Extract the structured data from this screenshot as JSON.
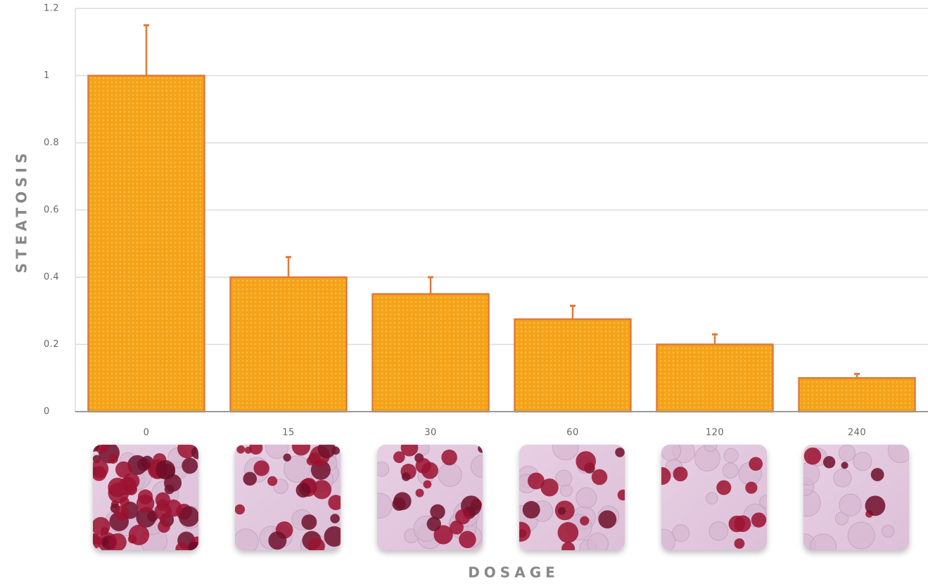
{
  "chart_data": {
    "type": "bar",
    "x_label": "DOSAGE",
    "y_label": "STEATOSIS",
    "categories": [
      "0",
      "15",
      "30",
      "60",
      "120",
      "240"
    ],
    "values": [
      1,
      0.4,
      0.35,
      0.275,
      0.2,
      0.1
    ],
    "errors": [
      0.15,
      0.06,
      0.05,
      0.04,
      0.03,
      0.012
    ],
    "color": "#f5a21a",
    "edge_color": "#e07a3a",
    "ylim": [
      0,
      1.2
    ],
    "yticks": [
      0,
      0.2,
      0.4,
      0.6,
      0.8,
      1,
      1.2
    ],
    "grid": true
  }
}
